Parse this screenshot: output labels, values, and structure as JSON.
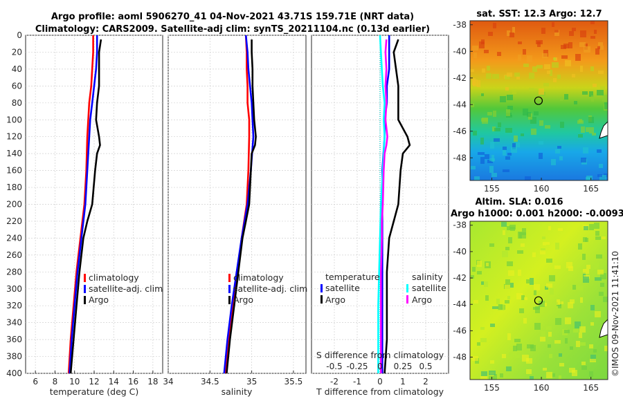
{
  "title_line1": "Argo profile: aoml 5906270_41 04-Nov-2021 43.71S 159.71E (NRT data)",
  "title_line2": "Climatology: CARS2009. Satellite-adj clim: synTS_20211104.nc (0.13d earlier)",
  "sst_title": "sat. SST: 12.3 Argo: 12.7",
  "sla_title_line1": "Altim. SLA: 0.016",
  "sla_title_line2": "Argo h1000: 0.001 h2000: -0.0093",
  "watermark": "©IMOS 09-Nov-2021 11:41:10",
  "colors": {
    "climatology": "#ff0000",
    "satellite": "#0000ff",
    "argo": "#000000",
    "sat_salinity": "#00ffff",
    "salinity_diff": "#ff00ff"
  },
  "chart_data": [
    {
      "type": "line",
      "name": "temperature-profile",
      "xlabel": "temperature (deg C)",
      "ylabel": "",
      "xlim": [
        5,
        19
      ],
      "ylim": [
        400,
        0
      ],
      "xticks": [
        "6",
        "8",
        "10",
        "12",
        "14",
        "16",
        "18"
      ],
      "yticks": [
        "0",
        "20",
        "40",
        "60",
        "80",
        "100",
        "120",
        "140",
        "160",
        "180",
        "200",
        "220",
        "240",
        "260",
        "280",
        "300",
        "320",
        "340",
        "360",
        "380",
        "400"
      ],
      "legend": [
        "climatology",
        "satellite-adj. clim",
        "Argo"
      ],
      "series": [
        {
          "name": "climatology",
          "depth": [
            0,
            20,
            40,
            60,
            80,
            100,
            120,
            160,
            200,
            240,
            280,
            320,
            360,
            400
          ],
          "values": [
            11.9,
            11.9,
            11.8,
            11.7,
            11.5,
            11.4,
            11.3,
            11.2,
            11.0,
            10.6,
            10.2,
            9.9,
            9.6,
            9.4
          ]
        },
        {
          "name": "satellite-adj. clim",
          "depth": [
            0,
            20,
            40,
            60,
            80,
            100,
            120,
            160,
            200,
            240,
            280,
            320,
            360,
            400
          ],
          "values": [
            12.3,
            12.3,
            12.2,
            12.0,
            11.8,
            11.6,
            11.5,
            11.3,
            11.1,
            10.7,
            10.3,
            10.0,
            9.7,
            9.5
          ]
        },
        {
          "name": "Argo",
          "depth": [
            5,
            20,
            40,
            60,
            80,
            100,
            120,
            130,
            140,
            160,
            200,
            220,
            240,
            280,
            320,
            360,
            400
          ],
          "values": [
            12.7,
            12.5,
            12.5,
            12.5,
            12.3,
            12.2,
            12.5,
            12.6,
            12.3,
            12.1,
            11.8,
            11.3,
            10.9,
            10.5,
            10.2,
            9.9,
            9.6
          ]
        }
      ]
    },
    {
      "type": "line",
      "name": "salinity-profile",
      "xlabel": "salinity",
      "ylabel": "",
      "xlim": [
        34,
        35.65
      ],
      "ylim": [
        400,
        0
      ],
      "xticks": [
        "34",
        "34.5",
        "35",
        "35.5"
      ],
      "legend": [
        "climatology",
        "satellite-adj. clim",
        "Argo"
      ],
      "series": [
        {
          "name": "climatology",
          "depth": [
            0,
            20,
            40,
            60,
            80,
            100,
            120,
            160,
            200,
            240,
            280,
            320,
            360,
            400
          ],
          "values": [
            34.93,
            34.94,
            34.94,
            34.95,
            34.95,
            34.97,
            34.97,
            34.96,
            34.94,
            34.88,
            34.83,
            34.78,
            34.73,
            34.69
          ]
        },
        {
          "name": "satellite-adj. clim",
          "depth": [
            0,
            20,
            40,
            60,
            80,
            100,
            120,
            160,
            200,
            240,
            280,
            320,
            360,
            400
          ],
          "values": [
            34.93,
            34.95,
            34.96,
            34.98,
            35.0,
            35.01,
            35.02,
            34.99,
            34.95,
            34.88,
            34.82,
            34.76,
            34.71,
            34.67
          ]
        },
        {
          "name": "Argo",
          "depth": [
            5,
            20,
            40,
            60,
            80,
            100,
            120,
            130,
            140,
            160,
            200,
            220,
            240,
            280,
            320,
            360,
            400
          ],
          "values": [
            35.0,
            35.0,
            35.01,
            35.01,
            35.02,
            35.03,
            35.05,
            35.04,
            35.0,
            34.99,
            34.97,
            34.93,
            34.89,
            34.84,
            34.79,
            34.74,
            34.7
          ]
        }
      ]
    },
    {
      "type": "line",
      "name": "difference-profile",
      "xlabel": "T difference from climatology",
      "x2label": "S difference from climatology",
      "xlim": [
        -3,
        3
      ],
      "ylim": [
        400,
        0
      ],
      "xticks": [
        "-2",
        "-1",
        "0",
        "1",
        "2"
      ],
      "x2ticks": [
        "-0.5",
        "-0.25",
        "0",
        "0.25",
        "0.5"
      ],
      "legend_temperature": {
        "title": "temperature",
        "items": [
          "satellite",
          "Argo"
        ]
      },
      "legend_salinity": {
        "title": "salinity",
        "items": [
          "satellite",
          "Argo"
        ]
      },
      "series": [
        {
          "name": "T satellite",
          "depth": [
            0,
            20,
            40,
            60,
            80,
            100,
            120,
            160,
            200,
            240,
            280,
            320,
            360,
            400
          ],
          "values": [
            0.4,
            0.4,
            0.4,
            0.3,
            0.3,
            0.2,
            0.2,
            0.1,
            0.1,
            0.1,
            0.1,
            0.1,
            0.1,
            0.1
          ]
        },
        {
          "name": "T Argo",
          "depth": [
            5,
            20,
            40,
            60,
            80,
            100,
            120,
            130,
            140,
            160,
            200,
            220,
            240,
            280,
            320,
            360,
            400
          ],
          "values": [
            0.8,
            0.6,
            0.7,
            0.8,
            0.8,
            0.8,
            1.2,
            1.3,
            1.0,
            0.9,
            0.8,
            0.6,
            0.4,
            0.3,
            0.3,
            0.3,
            0.2
          ]
        },
        {
          "name": "S satellite",
          "depth": [
            0,
            20,
            40,
            60,
            80,
            100,
            120,
            160,
            200,
            240,
            280,
            320,
            360,
            400
          ],
          "values": [
            0.0,
            0.01,
            0.02,
            0.03,
            0.05,
            0.04,
            0.05,
            0.03,
            0.01,
            0.0,
            -0.01,
            -0.02,
            -0.02,
            -0.02
          ]
        },
        {
          "name": "S Argo",
          "depth": [
            5,
            20,
            40,
            60,
            80,
            100,
            120,
            130,
            140,
            160,
            200,
            220,
            240,
            280,
            320,
            360,
            400
          ],
          "values": [
            0.07,
            0.06,
            0.07,
            0.06,
            0.07,
            0.06,
            0.08,
            0.07,
            0.05,
            0.04,
            0.03,
            0.02,
            0.02,
            0.01,
            0.01,
            0.01,
            0.01
          ]
        }
      ]
    },
    {
      "type": "heatmap",
      "name": "satellite-sst-map",
      "title": "sat. SST: 12.3 Argo: 12.7",
      "xticks": [
        "155",
        "160",
        "165"
      ],
      "yticks": [
        "-38",
        "-40",
        "-42",
        "-44",
        "-46",
        "-48"
      ],
      "xlim": [
        152.8,
        166.7
      ],
      "ylim": [
        -49.7,
        -37.7
      ],
      "argo_position": {
        "lon": 159.71,
        "lat": -43.71
      }
    },
    {
      "type": "heatmap",
      "name": "altimetry-sla-map",
      "title": "Altim. SLA: 0.016",
      "xticks": [
        "155",
        "160",
        "165"
      ],
      "yticks": [
        "-38",
        "-40",
        "-42",
        "-44",
        "-46",
        "-48"
      ],
      "xlim": [
        152.8,
        166.7
      ],
      "ylim": [
        -49.7,
        -37.7
      ],
      "argo_position": {
        "lon": 159.71,
        "lat": -43.71
      }
    }
  ]
}
